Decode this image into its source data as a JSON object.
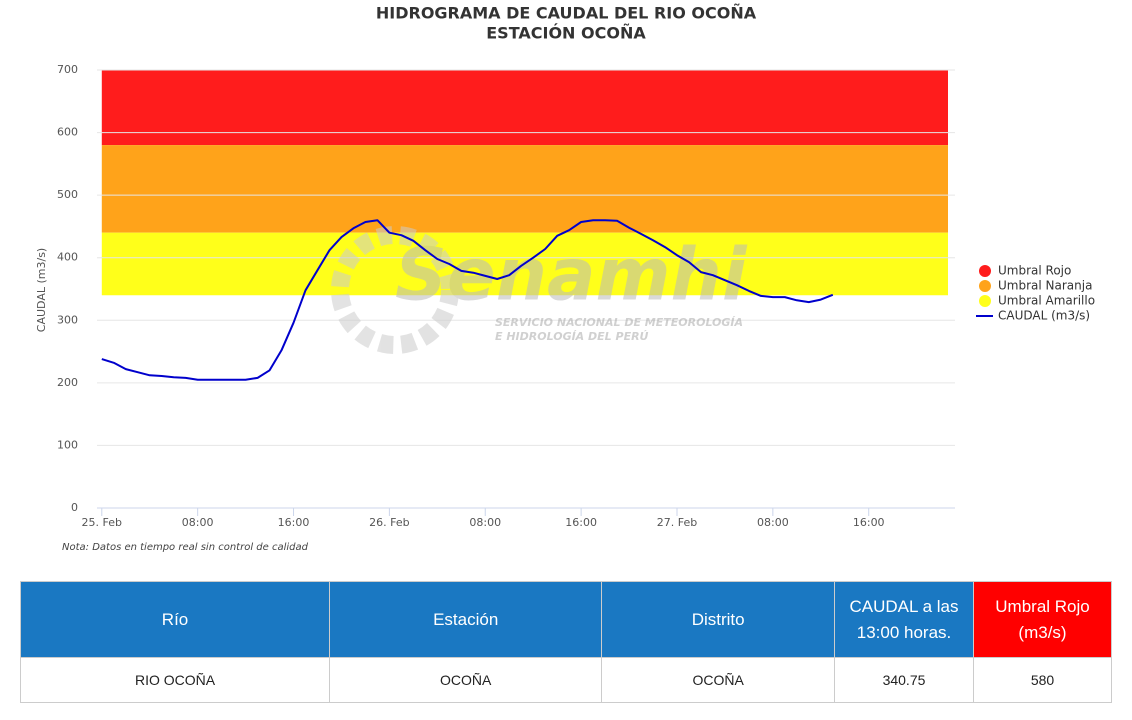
{
  "chart_data": {
    "type": "line",
    "title": "HIDROGRAMA DE CAUDAL DEL RIO OCOÑA",
    "subtitle": "ESTACIÓN OCOÑA",
    "y_label": "CAUDAL (m3/s)",
    "note": "Nota: Datos en tiempo real sin control de calidad",
    "x": [
      0,
      1,
      2,
      3,
      4,
      5,
      6,
      7,
      8,
      9,
      10,
      11,
      12,
      13,
      14,
      15,
      16,
      17,
      18,
      19,
      20,
      21,
      22,
      23,
      24,
      25,
      26,
      27,
      28,
      29,
      30,
      31,
      32,
      33,
      34,
      35,
      36,
      37,
      38,
      39,
      40,
      41,
      42,
      43,
      44,
      45,
      46,
      47,
      48,
      49,
      50,
      51,
      52,
      53,
      54,
      55,
      56,
      57,
      58,
      59,
      60,
      61
    ],
    "series": [
      {
        "name": "CAUDAL (m3/s)",
        "color": "#0000cc",
        "values": [
          238,
          232,
          222,
          217,
          212,
          211,
          209,
          208,
          205,
          205,
          205,
          205,
          205,
          208,
          220,
          252,
          296,
          348,
          380,
          412,
          433,
          447,
          457,
          460,
          440,
          436,
          427,
          412,
          398,
          390,
          379,
          376,
          371,
          366,
          372,
          387,
          400,
          414,
          435,
          444,
          457,
          460,
          460,
          459,
          448,
          438,
          428,
          417,
          404,
          393,
          377,
          372,
          364,
          356,
          347,
          339,
          337,
          337,
          332,
          329,
          333,
          340.75
        ]
      }
    ],
    "bands": [
      {
        "name": "Umbral Rojo",
        "color": "#ff1c1c",
        "from": 580,
        "to": 700
      },
      {
        "name": "Umbral Naranja",
        "color": "#ffa31a",
        "from": 440,
        "to": 580
      },
      {
        "name": "Umbral Amarillo",
        "color": "#ffff1a",
        "from": 340,
        "to": 440
      }
    ],
    "xlim": [
      -0.4,
      71.2
    ],
    "xticks": [
      {
        "value": 0,
        "label": "25. Feb"
      },
      {
        "value": 8,
        "label": "08:00"
      },
      {
        "value": 16,
        "label": "16:00"
      },
      {
        "value": 24,
        "label": "26. Feb"
      },
      {
        "value": 32,
        "label": "08:00"
      },
      {
        "value": 40,
        "label": "16:00"
      },
      {
        "value": 48,
        "label": "27. Feb"
      },
      {
        "value": 56,
        "label": "08:00"
      },
      {
        "value": 64,
        "label": "16:00"
      }
    ],
    "ylim": [
      0,
      700
    ],
    "yticks": [
      0,
      100,
      200,
      300,
      400,
      500,
      600,
      700
    ],
    "grid": true
  },
  "watermark": {
    "logo": "Senamhi",
    "line1": "SERVICIO NACIONAL DE METEOROLOGÍA",
    "line2": "E HIDROLOGÍA DEL PERÚ"
  },
  "table": {
    "header": [
      "Río",
      "Estación",
      "Distrito",
      "CAUDAL a las 13:00 horas.",
      "Umbral Rojo (m3/s)"
    ],
    "rows": [
      [
        "RIO OCOÑA",
        "OCOÑA",
        "OCOÑA",
        "340.75",
        "580"
      ]
    ]
  }
}
